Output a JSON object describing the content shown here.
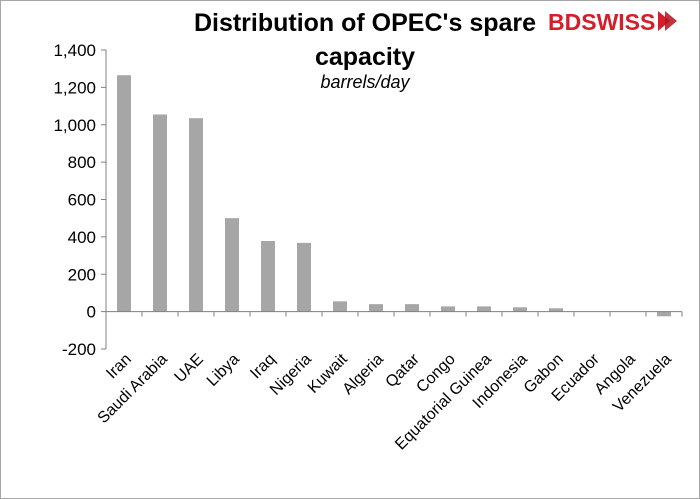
{
  "chart_data": {
    "type": "bar",
    "title": "Distribution of OPEC's spare capacity",
    "subtitle": "barrels/day",
    "categories": [
      "Iran",
      "Saudi Arabia",
      "UAE",
      "Libya",
      "Iraq",
      "Nigeria",
      "Kuwait",
      "Algeria",
      "Qatar",
      "Congo",
      "Equatorial Guinea",
      "Indonesia",
      "Gabon",
      "Ecuador",
      "Angola",
      "Venezuela"
    ],
    "values": [
      1265,
      1055,
      1035,
      500,
      378,
      368,
      55,
      40,
      40,
      28,
      28,
      23,
      18,
      0,
      0,
      -25
    ],
    "ylim": [
      -200,
      1400
    ],
    "yticks": [
      -200,
      0,
      200,
      400,
      600,
      800,
      1000,
      1200,
      1400
    ],
    "ytick_labels": [
      "-200",
      "0",
      "200",
      "400",
      "600",
      "800",
      "1,000",
      "1,200",
      "1,400"
    ],
    "xlabel": "",
    "ylabel": "",
    "grid": false,
    "legend": "none",
    "bar_color": "#a6a6a6"
  },
  "logo": {
    "part1": "BD",
    "part2": "SWISS"
  }
}
